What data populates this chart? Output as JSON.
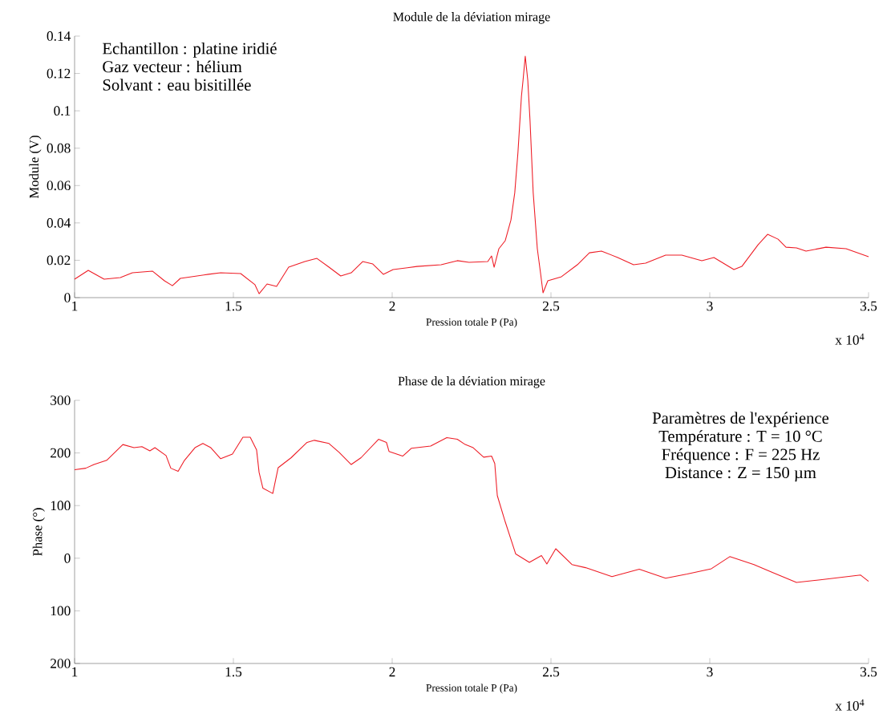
{
  "chart_data": [
    {
      "type": "line",
      "title": "Module de la déviation mirage",
      "xlabel": "Pression totale P (Pa)",
      "ylabel": "Module (V)",
      "xlim": [
        1,
        3.5
      ],
      "ylim": [
        0,
        0.14
      ],
      "xticks": [
        1,
        1.5,
        2,
        2.5,
        3,
        3.5
      ],
      "yticks": [
        0,
        0.02,
        0.04,
        0.06,
        0.08,
        0.1,
        0.12,
        0.14
      ],
      "annotations": [
        "x 10$^{4}$",
        "Echantillon : platine iridié",
        "Gaz vecteur : hélium",
        "Solvant : eau bisitillée"
      ],
      "x": [
        1.0,
        1.043,
        1.093,
        1.144,
        1.182,
        1.245,
        1.283,
        1.308,
        1.333,
        1.422,
        1.46,
        1.523,
        1.568,
        1.581,
        1.606,
        1.636,
        1.674,
        1.725,
        1.763,
        1.801,
        1.838,
        1.871,
        1.907,
        1.939,
        1.972,
        2.003,
        2.078,
        2.154,
        2.205,
        2.242,
        2.301,
        2.313,
        2.321,
        2.336,
        2.356,
        2.374,
        2.386,
        2.396,
        2.407,
        2.412,
        2.419,
        2.427,
        2.434,
        2.444,
        2.457,
        2.467,
        2.475,
        2.49,
        2.533,
        2.583,
        2.621,
        2.659,
        2.71,
        2.76,
        2.798,
        2.861,
        2.912,
        2.975,
        3.013,
        3.076,
        3.101,
        3.152,
        3.182,
        3.215,
        3.24,
        3.273,
        3.303,
        3.366,
        3.429,
        3.5
      ],
      "series": [
        {
          "color": "#ee1c25",
          "values": [
            0.0099,
            0.0146,
            0.0099,
            0.0107,
            0.0133,
            0.0142,
            0.009,
            0.0064,
            0.0103,
            0.0125,
            0.0133,
            0.0129,
            0.0069,
            0.0021,
            0.0073,
            0.006,
            0.0163,
            0.0193,
            0.021,
            0.0163,
            0.0116,
            0.0133,
            0.0193,
            0.018,
            0.0125,
            0.015,
            0.0167,
            0.0176,
            0.0198,
            0.0189,
            0.0193,
            0.0223,
            0.0163,
            0.0262,
            0.0305,
            0.0416,
            0.0562,
            0.0777,
            0.1078,
            0.1163,
            0.1292,
            0.1163,
            0.0949,
            0.0562,
            0.0262,
            0.0133,
            0.0026,
            0.009,
            0.0112,
            0.0176,
            0.024,
            0.0249,
            0.0215,
            0.0176,
            0.0185,
            0.0228,
            0.0228,
            0.0198,
            0.0215,
            0.015,
            0.0167,
            0.0283,
            0.0339,
            0.0313,
            0.027,
            0.0266,
            0.0249,
            0.027,
            0.0262,
            0.0219
          ]
        }
      ]
    },
    {
      "type": "line",
      "title": "Phase de la déviation mirage",
      "xlabel": "Pression totale P (Pa)",
      "ylabel": "Phase (°)",
      "xlim": [
        1,
        3.5
      ],
      "ylim": [
        -200,
        300
      ],
      "xticks": [
        1,
        1.5,
        2,
        2.5,
        3,
        3.5
      ],
      "yticks": [
        {
          "value": -200,
          "label": "200"
        },
        {
          "value": -100,
          "label": "100"
        },
        0,
        100,
        200,
        300
      ],
      "annotations": [
        "x 10$^{4}$",
        "Paramètres de l'expérience",
        "Température : T = 10 °C",
        "Fréquence : F = 225 Hz",
        "Distance : Z = 150 µm"
      ],
      "x": [
        1.0,
        1.035,
        1.061,
        1.101,
        1.152,
        1.187,
        1.212,
        1.237,
        1.253,
        1.288,
        1.303,
        1.326,
        1.346,
        1.379,
        1.404,
        1.429,
        1.46,
        1.497,
        1.53,
        1.553,
        1.573,
        1.581,
        1.593,
        1.624,
        1.641,
        1.682,
        1.732,
        1.755,
        1.801,
        1.833,
        1.871,
        1.902,
        1.957,
        1.982,
        1.99,
        2.033,
        2.061,
        2.121,
        2.172,
        2.205,
        2.23,
        2.255,
        2.288,
        2.313,
        2.323,
        2.331,
        2.356,
        2.389,
        2.432,
        2.47,
        2.487,
        2.515,
        2.566,
        2.609,
        2.692,
        2.778,
        2.861,
        2.929,
        3.005,
        3.063,
        3.139,
        3.197,
        3.273,
        3.348,
        3.475,
        3.5
      ],
      "series": [
        {
          "color": "#ee1c25",
          "values": [
            168,
            171,
            178,
            186,
            216,
            210,
            212,
            204,
            210,
            195,
            171,
            165,
            186,
            210,
            218,
            210,
            189,
            198,
            230,
            230,
            206,
            163,
            133,
            123,
            172,
            191,
            220,
            224,
            218,
            201,
            178,
            191,
            226,
            220,
            203,
            194,
            209,
            213,
            229,
            226,
            216,
            210,
            192,
            194,
            180,
            119,
            69,
            8,
            -8,
            5,
            -11,
            18,
            -12,
            -18,
            -35,
            -21,
            -38,
            -30,
            -20,
            3,
            -12,
            -27,
            -46,
            -41,
            -32,
            -44
          ]
        }
      ]
    }
  ]
}
